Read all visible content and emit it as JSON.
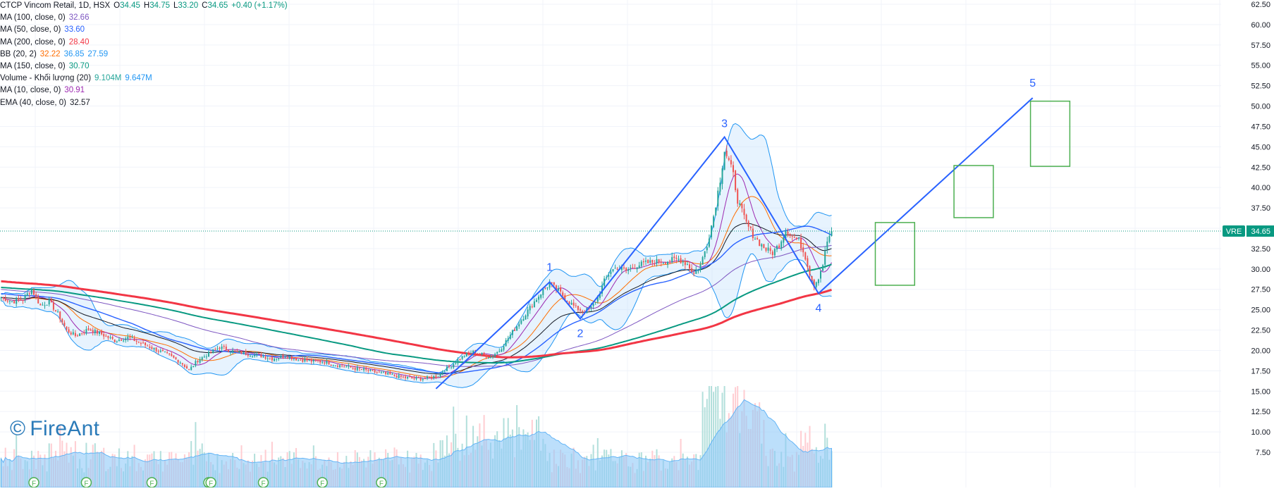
{
  "legend": {
    "header": {
      "name": "CTCP Vincom Retail, 1D, HSX",
      "o_label": "O",
      "o": "34.45",
      "h_label": "H",
      "h": "34.75",
      "l_label": "L",
      "l": "33.20",
      "c_label": "C",
      "c": "34.65",
      "change": "+0.40 (+1.17%)"
    },
    "indicators": [
      {
        "label": "MA (100, close, 0)",
        "values": [
          "32.66"
        ],
        "colors": [
          "#7e57c2"
        ]
      },
      {
        "label": "MA (50, close, 0)",
        "values": [
          "33.60"
        ],
        "colors": [
          "#2962ff"
        ]
      },
      {
        "label": "MA (200, close, 0)",
        "values": [
          "28.40"
        ],
        "colors": [
          "#f23645"
        ]
      },
      {
        "label": "BB (20, 2)",
        "values": [
          "32.22",
          "36.85",
          "27.59"
        ],
        "colors": [
          "#ff6d00",
          "#2196f3",
          "#2196f3"
        ]
      },
      {
        "label": "MA (150, close, 0)",
        "values": [
          "30.70"
        ],
        "colors": [
          "#089981"
        ]
      },
      {
        "label": "Volume - Khối lượng (20)",
        "values": [
          "9.104M",
          "9.647M"
        ],
        "colors": [
          "#26a69a",
          "#2196f3"
        ]
      },
      {
        "label": "MA (10, close, 0)",
        "values": [
          "30.91"
        ],
        "colors": [
          "#9c27b0"
        ]
      },
      {
        "label": "EMA (40, close, 0)",
        "values": [
          "32.57"
        ],
        "colors": [
          "#131722"
        ]
      }
    ]
  },
  "watermark": {
    "symbol": "©",
    "text": "FireAnt"
  },
  "price_tag": {
    "symbol": "VRE",
    "price": "34.65"
  },
  "colors": {
    "up": "#26a69a",
    "down": "#ef5350",
    "wave": "#2962ff",
    "target_box": "#4caf50",
    "bb_fill": "#bbdefb",
    "volume": "#90caf9",
    "price_tag_bg": "#089981"
  },
  "chart_data": {
    "type": "line",
    "y_axis": {
      "range": [
        6.5,
        63.0
      ],
      "ticks": [
        "62.50",
        "60.00",
        "57.50",
        "55.00",
        "52.50",
        "50.00",
        "47.50",
        "45.00",
        "42.50",
        "40.00",
        "37.50",
        "35.00",
        "32.50",
        "30.00",
        "27.50",
        "25.00",
        "22.50",
        "20.00",
        "17.50",
        "15.00",
        "12.50",
        "10.00",
        "7.50"
      ],
      "position": "right"
    },
    "grid": true,
    "last_price": 34.65,
    "close_series_keypoints": [
      [
        0,
        26.5
      ],
      [
        5,
        26.0
      ],
      [
        10,
        26.3
      ],
      [
        14,
        27.5
      ],
      [
        18,
        25.5
      ],
      [
        22,
        26.0
      ],
      [
        26,
        24.5
      ],
      [
        30,
        22.5
      ],
      [
        34,
        21.8
      ],
      [
        40,
        22.6
      ],
      [
        46,
        22.0
      ],
      [
        52,
        21.2
      ],
      [
        58,
        21.6
      ],
      [
        64,
        20.9
      ],
      [
        70,
        20.2
      ],
      [
        76,
        19.5
      ],
      [
        82,
        18.6
      ],
      [
        86,
        17.6
      ],
      [
        90,
        18.8
      ],
      [
        95,
        19.6
      ],
      [
        100,
        20.4
      ],
      [
        106,
        19.9
      ],
      [
        112,
        19.6
      ],
      [
        118,
        19.4
      ],
      [
        124,
        19.0
      ],
      [
        130,
        19.3
      ],
      [
        136,
        18.9
      ],
      [
        142,
        18.7
      ],
      [
        148,
        18.6
      ],
      [
        154,
        18.2
      ],
      [
        160,
        17.9
      ],
      [
        166,
        17.6
      ],
      [
        172,
        17.3
      ],
      [
        178,
        17.0
      ],
      [
        184,
        16.7
      ],
      [
        190,
        16.5
      ],
      [
        196,
        16.6
      ],
      [
        200,
        17.0
      ],
      [
        204,
        17.8
      ],
      [
        208,
        18.6
      ],
      [
        212,
        19.4
      ],
      [
        216,
        19.8
      ],
      [
        220,
        19.5
      ],
      [
        224,
        19.2
      ],
      [
        228,
        20.0
      ],
      [
        232,
        21.5
      ],
      [
        236,
        23.0
      ],
      [
        240,
        24.5
      ],
      [
        244,
        26.0
      ],
      [
        248,
        27.4
      ],
      [
        251,
        28.2
      ],
      [
        255,
        27.3
      ],
      [
        259,
        26.2
      ],
      [
        263,
        25.2
      ],
      [
        267,
        24.8
      ],
      [
        270,
        25.2
      ],
      [
        273,
        26.5
      ],
      [
        276,
        28.5
      ],
      [
        279,
        29.8
      ],
      [
        282,
        30.2
      ],
      [
        286,
        29.8
      ],
      [
        290,
        30.4
      ],
      [
        295,
        30.7
      ],
      [
        300,
        30.9
      ],
      [
        305,
        31.0
      ],
      [
        310,
        31.2
      ],
      [
        314,
        30.6
      ],
      [
        317,
        29.4
      ],
      [
        320,
        30.5
      ],
      [
        323,
        33.0
      ],
      [
        326,
        36.5
      ],
      [
        329,
        41.0
      ],
      [
        331,
        44.6
      ],
      [
        333,
        43.2
      ],
      [
        335,
        41.5
      ],
      [
        337,
        38.5
      ],
      [
        339,
        37.0
      ],
      [
        341,
        35.6
      ],
      [
        344,
        34.2
      ],
      [
        347,
        33.2
      ],
      [
        350,
        32.4
      ],
      [
        353,
        32.0
      ],
      [
        356,
        33.0
      ],
      [
        359,
        34.8
      ],
      [
        362,
        34.0
      ],
      [
        365,
        33.5
      ],
      [
        368,
        31.5
      ],
      [
        370,
        29.5
      ],
      [
        372,
        28.0
      ],
      [
        374,
        29.0
      ],
      [
        376,
        30.6
      ],
      [
        378,
        33.4
      ],
      [
        380,
        34.65
      ]
    ],
    "total_bars": 381,
    "series": [
      {
        "name": "MA (10, close, 0)",
        "color": "#9c27b0",
        "value_last": 30.91
      },
      {
        "name": "BB (20, 2)",
        "color": "#2196f3",
        "value_last": 32.22,
        "upper_last": 36.85,
        "lower_last": 27.59
      },
      {
        "name": "EMA (40, close, 0)",
        "color": "#131722",
        "value_last": 32.57
      },
      {
        "name": "MA (50, close, 0)",
        "color": "#2962ff",
        "value_last": 33.6
      },
      {
        "name": "MA (100, close, 0)",
        "color": "#7e57c2",
        "value_last": 32.66
      },
      {
        "name": "MA (150, close, 0)",
        "color": "#089981",
        "value_last": 30.7
      },
      {
        "name": "MA (200, close, 0)",
        "color": "#f23645",
        "value_last": 28.4
      }
    ],
    "volume_last": "9.104M",
    "volume_ma_last": "9.647M",
    "dividend_markers": {
      "label": "F",
      "bars": [
        15,
        39,
        69,
        95,
        96,
        120,
        147,
        174
      ]
    },
    "elliott_wave": {
      "labels": [
        "1",
        "2",
        "3",
        "4",
        "5"
      ],
      "points": [
        {
          "bar": 199,
          "price": 15.3
        },
        {
          "bar": 251,
          "price": 28.4
        },
        {
          "bar": 265,
          "price": 23.9
        },
        {
          "bar": 331,
          "price": 46.2
        },
        {
          "bar": 374,
          "price": 27.0
        },
        {
          "bar": 472,
          "price": 51.0
        }
      ]
    },
    "target_boxes": [
      {
        "bar_from": 400,
        "bar_to": 418,
        "price_top": 35.7,
        "price_bottom": 28.0
      },
      {
        "bar_from": 436,
        "bar_to": 454,
        "price_top": 42.7,
        "price_bottom": 36.3
      },
      {
        "bar_from": 471,
        "bar_to": 489,
        "price_top": 50.6,
        "price_bottom": 42.6
      }
    ]
  }
}
